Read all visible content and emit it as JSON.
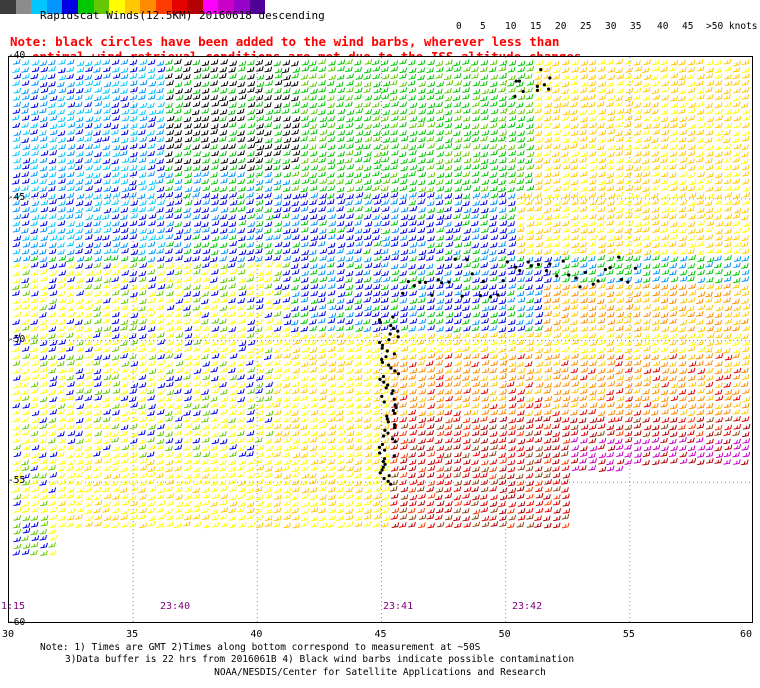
{
  "title": "Rapidscat Winds(12.5KM) 20160618 descending",
  "note": {
    "line1": "Note: black circles have been added to the wind barbs, wherever less than",
    "line2": "optimal wind retrieval conditions are met due to the ISS altitude changes."
  },
  "legend": {
    "colors": [
      "#3c3c3c",
      "#8c8c8c",
      "#00c8ff",
      "#0096ff",
      "#0000e6",
      "#00c800",
      "#64c800",
      "#ffff00",
      "#ffc800",
      "#ff8c00",
      "#ff3c00",
      "#e60000",
      "#b40000",
      "#ff00ff",
      "#c800c8",
      "#9600c8",
      "#500096"
    ],
    "labels": [
      "0",
      "5",
      "10",
      "15",
      "20",
      "25",
      "30",
      "35",
      "40",
      "45",
      ">50 knots"
    ]
  },
  "x_axis": {
    "labels": [
      "30",
      "35",
      "40",
      "45",
      "50",
      "55",
      "60"
    ],
    "range": [
      30,
      60
    ]
  },
  "y_axis": {
    "labels": [
      "-40",
      "-45",
      "-50",
      "-55",
      "-60"
    ],
    "range": [
      -60,
      -40
    ]
  },
  "time_labels": [
    "1:15",
    "23:40",
    "23:41",
    "23:42"
  ],
  "footer": {
    "line1": "Note: 1) Times are GMT 2)Times along bottom correspond to measurement at ~50S",
    "line2": "3)Data buffer is 22 hrs from 2016061B 4) Black wind barbs indicate possible contamination",
    "credit": "NOAA/NESDIS/Center for Satellite Applications and Research"
  }
}
